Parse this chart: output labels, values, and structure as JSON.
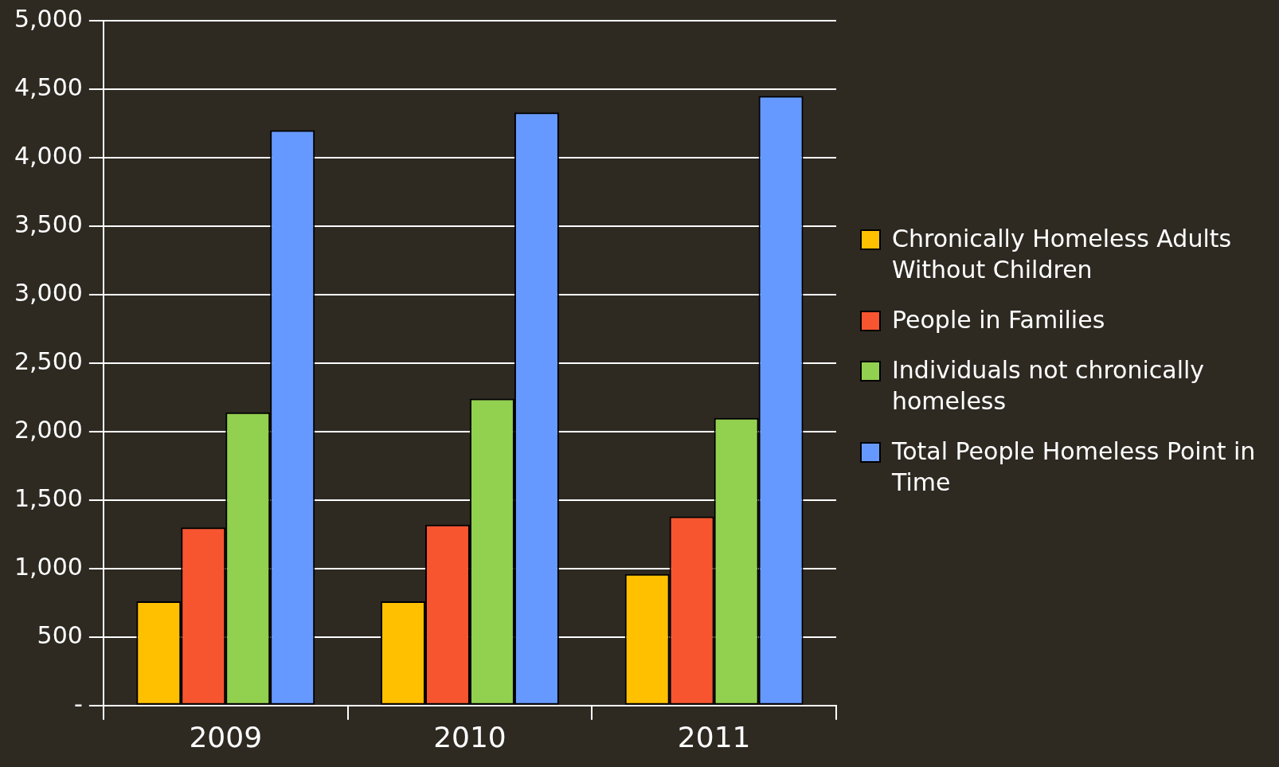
{
  "chart_data": {
    "type": "bar",
    "categories": [
      "2009",
      "2010",
      "2011"
    ],
    "series": [
      {
        "name": "Chronically Homeless Adults Without Children",
        "color": "#ffc000",
        "values": [
          760,
          760,
          960
        ]
      },
      {
        "name": "People in Families",
        "color": "#f75530",
        "values": [
          1300,
          1320,
          1380
        ]
      },
      {
        "name": "Individuals not chronically homeless",
        "color": "#92d050",
        "values": [
          2140,
          2240,
          2100
        ]
      },
      {
        "name": "Total People Homeless Point in Time",
        "color": "#6699ff",
        "values": [
          4200,
          4330,
          4450
        ]
      }
    ],
    "ylim": [
      0,
      5000
    ],
    "yticks": [
      {
        "value": 0,
        "label": "-"
      },
      {
        "value": 500,
        "label": "500"
      },
      {
        "value": 1000,
        "label": "1,000"
      },
      {
        "value": 1500,
        "label": "1,500"
      },
      {
        "value": 2000,
        "label": "2,000"
      },
      {
        "value": 2500,
        "label": "2,500"
      },
      {
        "value": 3000,
        "label": "3,000"
      },
      {
        "value": 3500,
        "label": "3,500"
      },
      {
        "value": 4000,
        "label": "4,000"
      },
      {
        "value": 4500,
        "label": "4,500"
      },
      {
        "value": 5000,
        "label": "5,000"
      }
    ],
    "grid": "y",
    "legend": "right"
  }
}
